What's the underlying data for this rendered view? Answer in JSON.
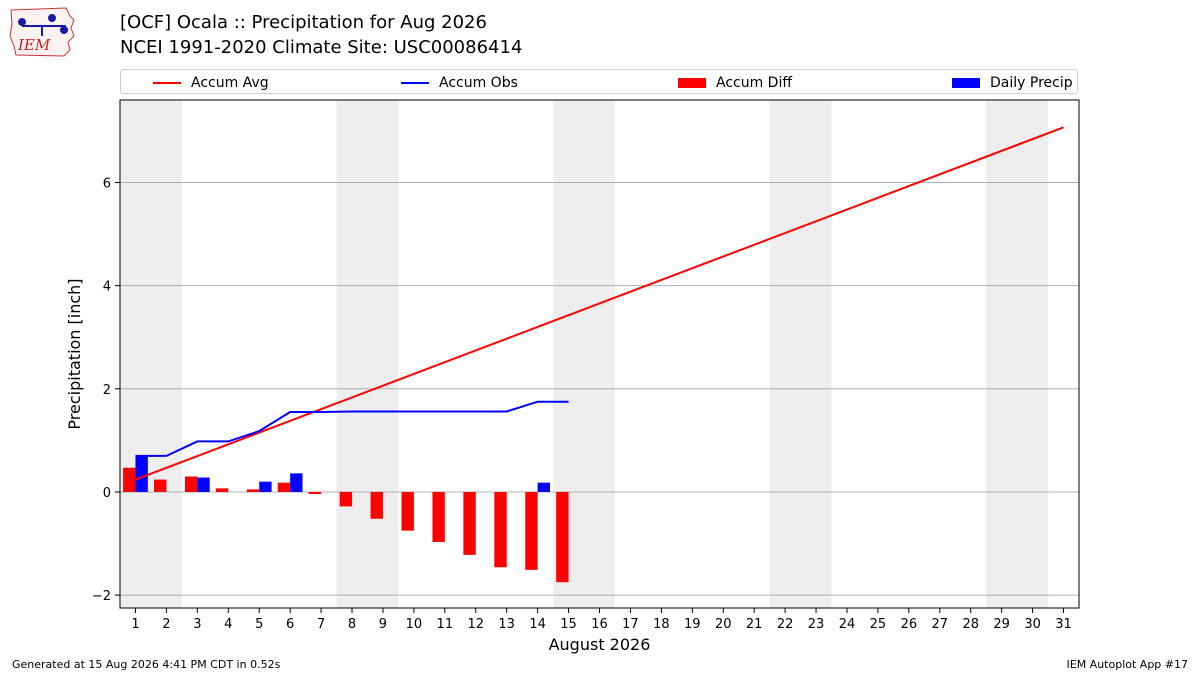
{
  "header": {
    "title_line1": "[OCF] Ocala :: Precipitation for Aug 2026",
    "title_line2": "NCEI 1991-2020 Climate Site: USC00086414",
    "logo_text": "IEM"
  },
  "footer": {
    "generated": "Generated at 15 Aug 2026 4:41 PM CDT in 0.52s",
    "app": "IEM Autoplot App #17"
  },
  "colors": {
    "accum_avg": "#ff0000",
    "accum_obs": "#0000ff",
    "accum_diff": "#ff0000",
    "daily_precip": "#0000ff",
    "weekend_shade": "#eeeeee",
    "grid": "#b0b0b0"
  },
  "chart_data": {
    "type": "bar",
    "xlabel": "August 2026",
    "ylabel": "Precipitation [inch]",
    "xlim": [
      0.5,
      31.5
    ],
    "ylim": [
      -2.25,
      7.6
    ],
    "yticks": [
      -2,
      0,
      2,
      4,
      6
    ],
    "grid": "horizontal",
    "legend_position": "top",
    "days": [
      1,
      2,
      3,
      4,
      5,
      6,
      7,
      8,
      9,
      10,
      11,
      12,
      13,
      14,
      15,
      16,
      17,
      18,
      19,
      20,
      21,
      22,
      23,
      24,
      25,
      26,
      27,
      28,
      29,
      30,
      31
    ],
    "weekend_shading": [
      [
        0.5,
        2.5
      ],
      [
        7.5,
        9.5
      ],
      [
        14.5,
        16.5
      ],
      [
        21.5,
        23.5
      ],
      [
        28.5,
        30.5
      ]
    ],
    "legend": [
      {
        "name": "Accum Avg",
        "kind": "line",
        "color": "#ff0000"
      },
      {
        "name": "Accum Obs",
        "kind": "line",
        "color": "#0000ff"
      },
      {
        "name": "Accum Diff",
        "kind": "bar",
        "color": "#ff0000"
      },
      {
        "name": "Daily Precip",
        "kind": "bar",
        "color": "#0000ff"
      }
    ],
    "series": [
      {
        "name": "Accum Avg",
        "type": "line",
        "x": [
          1,
          31
        ],
        "values": [
          0.24,
          7.07
        ]
      },
      {
        "name": "Accum Obs",
        "type": "line",
        "x": [
          1,
          2,
          3,
          4,
          5,
          6,
          7,
          8,
          9,
          10,
          11,
          12,
          13,
          14,
          15
        ],
        "values": [
          0.7,
          0.7,
          0.98,
          0.98,
          1.18,
          1.55,
          1.55,
          1.56,
          1.56,
          1.56,
          1.56,
          1.56,
          1.56,
          1.75,
          1.75
        ]
      },
      {
        "name": "Accum Diff",
        "type": "bar",
        "x": [
          1,
          2,
          3,
          4,
          5,
          6,
          7,
          8,
          9,
          10,
          11,
          12,
          13,
          14,
          15
        ],
        "values": [
          0.47,
          0.24,
          0.3,
          0.07,
          0.05,
          0.18,
          -0.04,
          -0.28,
          -0.52,
          -0.75,
          -0.97,
          -1.22,
          -1.46,
          -1.51,
          -1.75
        ]
      },
      {
        "name": "Daily Precip",
        "type": "bar",
        "x": [
          1,
          2,
          3,
          4,
          5,
          6,
          7,
          8,
          9,
          10,
          11,
          12,
          13,
          14,
          15
        ],
        "values": [
          0.7,
          0,
          0.28,
          0,
          0.2,
          0.36,
          0,
          0,
          0,
          0,
          0,
          0,
          0,
          0.18,
          0
        ]
      }
    ]
  }
}
